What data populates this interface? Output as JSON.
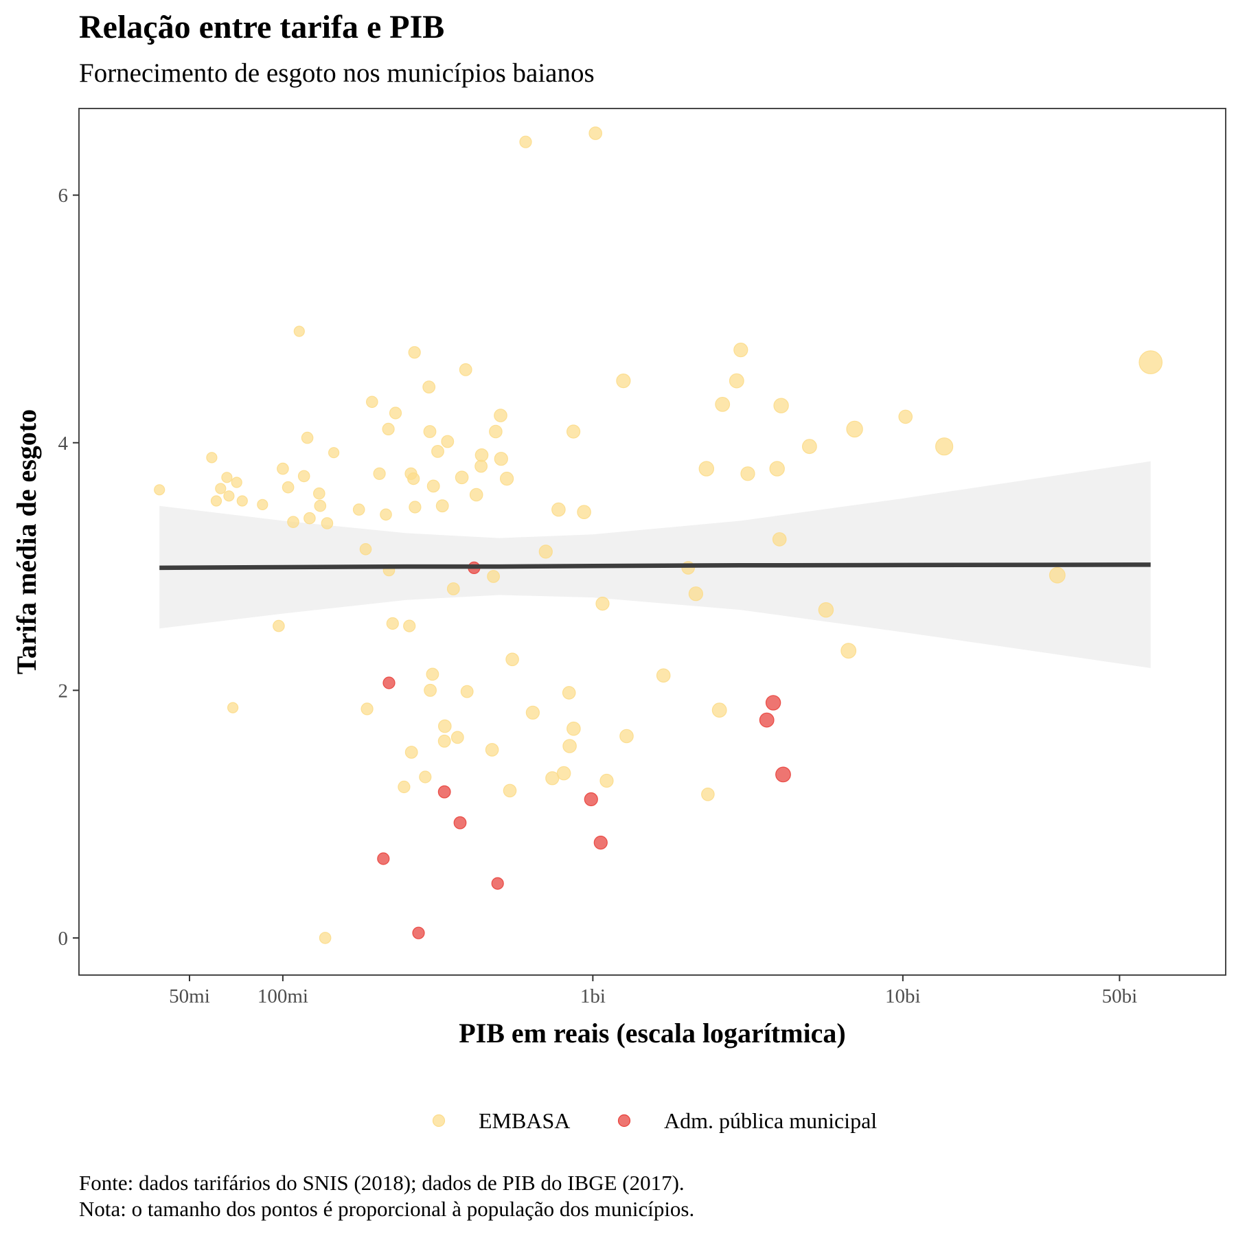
{
  "chart_data": {
    "type": "scatter",
    "title": "Relação entre tarifa e PIB",
    "subtitle": "Fornecimento de esgoto nos municípios baianos",
    "xlabel": "PIB em reais (escala logarítmica)",
    "ylabel": "Tarifa média de esgoto",
    "x_scale": "log10",
    "xlim": [
      22000000,
      110000000000
    ],
    "ylim": [
      -0.3,
      6.7
    ],
    "x_ticks": [
      {
        "value": 50000000,
        "label": "50mi"
      },
      {
        "value": 100000000,
        "label": "100mi"
      },
      {
        "value": 1000000000,
        "label": "1bi"
      },
      {
        "value": 10000000000,
        "label": "10bi"
      },
      {
        "value": 50000000000,
        "label": "50bi"
      }
    ],
    "y_ticks": [
      {
        "value": 0,
        "label": "0"
      },
      {
        "value": 2,
        "label": "2"
      },
      {
        "value": 4,
        "label": "4"
      },
      {
        "value": 6,
        "label": "6"
      }
    ],
    "grid": false,
    "legend_position": "bottom",
    "legend": [
      {
        "name": "EMBASA",
        "color": "#fcdc8a"
      },
      {
        "name": "Adm. pública municipal",
        "color": "#e8403a"
      }
    ],
    "series": [
      {
        "name": "EMBASA",
        "color": "#fcdc8a",
        "points": [
          {
            "x": 40000000,
            "y": 3.62,
            "s": 1
          },
          {
            "x": 59000000,
            "y": 3.88,
            "s": 1
          },
          {
            "x": 66000000,
            "y": 3.72,
            "s": 1
          },
          {
            "x": 63000000,
            "y": 3.63,
            "s": 1
          },
          {
            "x": 61000000,
            "y": 3.53,
            "s": 1
          },
          {
            "x": 67000000,
            "y": 3.57,
            "s": 1
          },
          {
            "x": 71000000,
            "y": 3.68,
            "s": 1
          },
          {
            "x": 74000000,
            "y": 3.53,
            "s": 1
          },
          {
            "x": 69000000,
            "y": 1.86,
            "s": 1
          },
          {
            "x": 86000000,
            "y": 3.5,
            "s": 1
          },
          {
            "x": 97000000,
            "y": 2.52,
            "s": 1.2
          },
          {
            "x": 100000000,
            "y": 3.79,
            "s": 1.2
          },
          {
            "x": 104000000,
            "y": 3.64,
            "s": 1.2
          },
          {
            "x": 108000000,
            "y": 3.36,
            "s": 1.2
          },
          {
            "x": 113000000,
            "y": 4.9,
            "s": 1
          },
          {
            "x": 117000000,
            "y": 3.73,
            "s": 1.2
          },
          {
            "x": 120000000,
            "y": 4.04,
            "s": 1.2
          },
          {
            "x": 122000000,
            "y": 3.39,
            "s": 1.2
          },
          {
            "x": 131000000,
            "y": 3.59,
            "s": 1.2
          },
          {
            "x": 132000000,
            "y": 3.49,
            "s": 1.2
          },
          {
            "x": 139000000,
            "y": 3.35,
            "s": 1.2
          },
          {
            "x": 137000000,
            "y": 0.0,
            "s": 1.2
          },
          {
            "x": 146000000,
            "y": 3.92,
            "s": 1
          },
          {
            "x": 176000000,
            "y": 3.46,
            "s": 1.2
          },
          {
            "x": 185000000,
            "y": 3.14,
            "s": 1.2
          },
          {
            "x": 187000000,
            "y": 1.85,
            "s": 1.3
          },
          {
            "x": 194000000,
            "y": 4.33,
            "s": 1.2
          },
          {
            "x": 205000000,
            "y": 3.75,
            "s": 1.3
          },
          {
            "x": 215000000,
            "y": 3.42,
            "s": 1.2
          },
          {
            "x": 219000000,
            "y": 4.11,
            "s": 1.3
          },
          {
            "x": 220000000,
            "y": 2.97,
            "s": 1.2
          },
          {
            "x": 226000000,
            "y": 2.54,
            "s": 1.3
          },
          {
            "x": 231000000,
            "y": 4.24,
            "s": 1.3
          },
          {
            "x": 246000000,
            "y": 1.22,
            "s": 1.3
          },
          {
            "x": 256000000,
            "y": 2.52,
            "s": 1.3
          },
          {
            "x": 259000000,
            "y": 3.75,
            "s": 1.3
          },
          {
            "x": 264000000,
            "y": 3.71,
            "s": 1.3
          },
          {
            "x": 266000000,
            "y": 4.73,
            "s": 1.3
          },
          {
            "x": 260000000,
            "y": 1.5,
            "s": 1.4
          },
          {
            "x": 267000000,
            "y": 3.48,
            "s": 1.3
          },
          {
            "x": 288000000,
            "y": 1.3,
            "s": 1.3
          },
          {
            "x": 296000000,
            "y": 4.45,
            "s": 1.4
          },
          {
            "x": 298000000,
            "y": 4.09,
            "s": 1.4
          },
          {
            "x": 299000000,
            "y": 2.0,
            "s": 1.4
          },
          {
            "x": 304000000,
            "y": 2.13,
            "s": 1.4
          },
          {
            "x": 306000000,
            "y": 3.65,
            "s": 1.4
          },
          {
            "x": 316000000,
            "y": 3.93,
            "s": 1.4
          },
          {
            "x": 327000000,
            "y": 3.49,
            "s": 1.4
          },
          {
            "x": 333000000,
            "y": 1.71,
            "s": 1.5
          },
          {
            "x": 332000000,
            "y": 1.59,
            "s": 1.4
          },
          {
            "x": 340000000,
            "y": 4.01,
            "s": 1.4
          },
          {
            "x": 355000000,
            "y": 2.82,
            "s": 1.4
          },
          {
            "x": 366000000,
            "y": 1.62,
            "s": 1.4
          },
          {
            "x": 378000000,
            "y": 3.72,
            "s": 1.5
          },
          {
            "x": 389000000,
            "y": 4.59,
            "s": 1.4
          },
          {
            "x": 393000000,
            "y": 1.99,
            "s": 1.4
          },
          {
            "x": 421000000,
            "y": 3.58,
            "s": 1.5
          },
          {
            "x": 438000000,
            "y": 3.9,
            "s": 1.5
          },
          {
            "x": 436000000,
            "y": 3.81,
            "s": 1.4
          },
          {
            "x": 478000000,
            "y": 2.92,
            "s": 1.4
          },
          {
            "x": 473000000,
            "y": 1.52,
            "s": 1.5
          },
          {
            "x": 486000000,
            "y": 4.09,
            "s": 1.5
          },
          {
            "x": 504000000,
            "y": 4.22,
            "s": 1.5
          },
          {
            "x": 506000000,
            "y": 3.87,
            "s": 1.6
          },
          {
            "x": 528000000,
            "y": 3.71,
            "s": 1.6
          },
          {
            "x": 540000000,
            "y": 1.19,
            "s": 1.5
          },
          {
            "x": 550000000,
            "y": 2.25,
            "s": 1.5
          },
          {
            "x": 607000000,
            "y": 6.43,
            "s": 1.3
          },
          {
            "x": 640000000,
            "y": 1.82,
            "s": 1.6
          },
          {
            "x": 705000000,
            "y": 3.12,
            "s": 1.6
          },
          {
            "x": 740000000,
            "y": 1.29,
            "s": 1.6
          },
          {
            "x": 775000000,
            "y": 3.46,
            "s": 1.7
          },
          {
            "x": 806000000,
            "y": 1.33,
            "s": 1.7
          },
          {
            "x": 838000000,
            "y": 1.98,
            "s": 1.5
          },
          {
            "x": 842000000,
            "y": 1.55,
            "s": 1.7
          },
          {
            "x": 867000000,
            "y": 1.69,
            "s": 1.7
          },
          {
            "x": 866000000,
            "y": 4.09,
            "s": 1.6
          },
          {
            "x": 937000000,
            "y": 3.44,
            "s": 1.7
          },
          {
            "x": 1020000000,
            "y": 6.5,
            "s": 1.5
          },
          {
            "x": 1075000000,
            "y": 2.7,
            "s": 1.6
          },
          {
            "x": 1108000000,
            "y": 1.27,
            "s": 1.6
          },
          {
            "x": 1255000000,
            "y": 4.5,
            "s": 1.8
          },
          {
            "x": 1285000000,
            "y": 1.63,
            "s": 1.7
          },
          {
            "x": 1690000000,
            "y": 2.12,
            "s": 1.7
          },
          {
            "x": 2030000000,
            "y": 2.99,
            "s": 1.5
          },
          {
            "x": 2150000000,
            "y": 2.78,
            "s": 1.8
          },
          {
            "x": 2350000000,
            "y": 1.16,
            "s": 1.5
          },
          {
            "x": 2325000000,
            "y": 3.79,
            "s": 2
          },
          {
            "x": 2560000000,
            "y": 1.84,
            "s": 1.9
          },
          {
            "x": 2620000000,
            "y": 4.31,
            "s": 1.9
          },
          {
            "x": 2910000000,
            "y": 4.5,
            "s": 1.9
          },
          {
            "x": 3000000000,
            "y": 4.75,
            "s": 1.8
          },
          {
            "x": 3160000000,
            "y": 3.75,
            "s": 1.8
          },
          {
            "x": 3930000000,
            "y": 3.79,
            "s": 2
          },
          {
            "x": 4000000000,
            "y": 3.22,
            "s": 1.7
          },
          {
            "x": 4050000000,
            "y": 4.3,
            "s": 2
          },
          {
            "x": 5000000000,
            "y": 3.97,
            "s": 1.9
          },
          {
            "x": 5650000000,
            "y": 2.65,
            "s": 2
          },
          {
            "x": 6680000000,
            "y": 2.32,
            "s": 2.1
          },
          {
            "x": 6990000000,
            "y": 4.11,
            "s": 2.4
          },
          {
            "x": 10200000000,
            "y": 4.21,
            "s": 1.7
          },
          {
            "x": 13600000000,
            "y": 3.97,
            "s": 2.8
          },
          {
            "x": 31500000000,
            "y": 2.93,
            "s": 2.3
          },
          {
            "x": 63000000000,
            "y": 4.65,
            "s": 5
          }
        ]
      },
      {
        "name": "Adm. pública municipal",
        "color": "#e8403a",
        "points": [
          {
            "x": 220000000,
            "y": 2.06,
            "s": 1.3
          },
          {
            "x": 211000000,
            "y": 0.64,
            "s": 1.3
          },
          {
            "x": 274000000,
            "y": 0.04,
            "s": 1.3
          },
          {
            "x": 332000000,
            "y": 1.18,
            "s": 1.4
          },
          {
            "x": 373000000,
            "y": 0.93,
            "s": 1.4
          },
          {
            "x": 414000000,
            "y": 2.99,
            "s": 1.3
          },
          {
            "x": 493000000,
            "y": 0.44,
            "s": 1.3
          },
          {
            "x": 987000000,
            "y": 1.12,
            "s": 1.6
          },
          {
            "x": 1060000000,
            "y": 0.77,
            "s": 1.6
          },
          {
            "x": 3640000000,
            "y": 1.76,
            "s": 1.9
          },
          {
            "x": 3820000000,
            "y": 1.9,
            "s": 2
          },
          {
            "x": 4110000000,
            "y": 1.32,
            "s": 2.1
          }
        ]
      }
    ],
    "trend": {
      "name": "",
      "color": "#3d3d3d",
      "band_color": "#ebebeb",
      "x_range": [
        40000000,
        63000000000
      ],
      "samples": [
        {
          "x": 40000000,
          "fit": 2.99,
          "lower": 2.5,
          "upper": 3.49
        },
        {
          "x": 100000000,
          "fit": 2.995,
          "lower": 2.62,
          "upper": 3.37
        },
        {
          "x": 250000000,
          "fit": 3.0,
          "lower": 2.73,
          "upper": 3.27
        },
        {
          "x": 500000000,
          "fit": 3.0,
          "lower": 2.77,
          "upper": 3.23
        },
        {
          "x": 1000000000,
          "fit": 3.005,
          "lower": 2.75,
          "upper": 3.26
        },
        {
          "x": 3000000000,
          "fit": 3.01,
          "lower": 2.65,
          "upper": 3.37
        },
        {
          "x": 10000000000,
          "fit": 3.012,
          "lower": 2.47,
          "upper": 3.55
        },
        {
          "x": 63000000000,
          "fit": 3.015,
          "lower": 2.18,
          "upper": 3.85
        }
      ]
    }
  },
  "caption": {
    "source": "Fonte: dados tarifários do SNIS (2018); dados de PIB do IBGE (2017).",
    "note": "Nota: o tamanho dos pontos é proporcional à população dos municípios."
  }
}
